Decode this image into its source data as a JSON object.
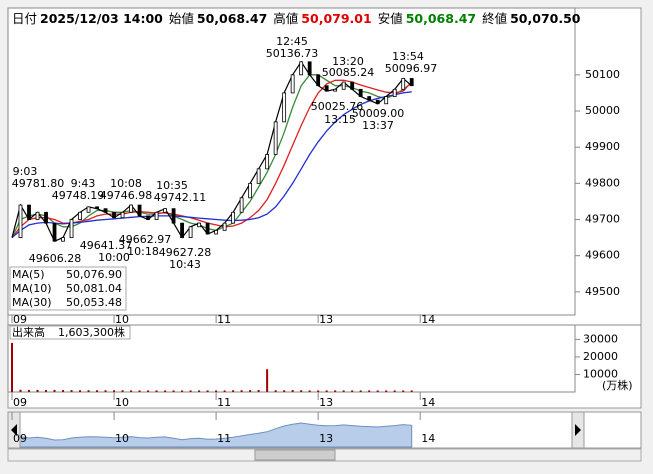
{
  "header": {
    "items": [
      {
        "label": "日付",
        "value": "2025/12/03 14:00",
        "color": "#000000"
      },
      {
        "label": "始値",
        "value": "50,068.47",
        "color": "#000000"
      },
      {
        "label": "高値",
        "value": "50,079.01",
        "color": "#e00000"
      },
      {
        "label": "安値",
        "value": "50,068.47",
        "color": "#008000"
      },
      {
        "label": "終値",
        "value": "50,070.50",
        "color": "#000000"
      }
    ]
  },
  "chart_data": [
    {
      "type": "line",
      "x": [
        0,
        5,
        10,
        15,
        20,
        25,
        30,
        35,
        40,
        45,
        50,
        55,
        60,
        65,
        70,
        75,
        80,
        85,
        90,
        95,
        100,
        105,
        110,
        115,
        120,
        125,
        130,
        135,
        140,
        145,
        150,
        155,
        160,
        165,
        170,
        175,
        180,
        185,
        190,
        195,
        200,
        205,
        210,
        215,
        220,
        225,
        230,
        235
      ],
      "xlim": [
        0,
        331
      ],
      "xticks": [
        {
          "value": 0,
          "label": "09"
        },
        {
          "value": 60,
          "label": "10"
        },
        {
          "value": 120,
          "label": "11"
        },
        {
          "value": 180,
          "label": "13"
        },
        {
          "value": 240,
          "label": "14"
        }
      ],
      "ylim": [
        49436,
        50224
      ],
      "yticks": [
        49500,
        49600,
        49700,
        49800,
        49900,
        50000,
        50100
      ],
      "price": {
        "color": "#000000",
        "values": [
          49650,
          49740,
          49700,
          49720,
          49690,
          49640,
          49650,
          49700,
          49720,
          49735,
          49730,
          49720,
          49705,
          49720,
          49740,
          49710,
          49700,
          49720,
          49730,
          49690,
          49650,
          49680,
          49690,
          49660,
          49670,
          49690,
          49720,
          49760,
          49800,
          49840,
          49880,
          49970,
          50050,
          50100,
          50136,
          50100,
          50070,
          50055,
          50060,
          50080,
          50060,
          50040,
          50030,
          50020,
          50040,
          50060,
          50090,
          50070
        ]
      },
      "series": [
        {
          "name": "MA(5)",
          "value_label": "50,076.90",
          "color": "#3a8a3a",
          "values": [
            49650,
            49700,
            49710,
            49715,
            49710,
            49690,
            49680,
            49680,
            49690,
            49710,
            49725,
            49725,
            49720,
            49720,
            49725,
            49720,
            49715,
            49715,
            49720,
            49710,
            49700,
            49690,
            49685,
            49675,
            49670,
            49680,
            49690,
            49720,
            49750,
            49790,
            49830,
            49880,
            49940,
            50010,
            50070,
            50100,
            50100,
            50085,
            50070,
            50070,
            50065,
            50055,
            50050,
            50040,
            50035,
            50045,
            50060,
            50077
          ]
        },
        {
          "name": "MA(10)",
          "value_label": "50,081.04",
          "color": "#e02020",
          "values": [
            49650,
            49680,
            49700,
            49705,
            49705,
            49700,
            49690,
            49690,
            49695,
            49700,
            49710,
            49715,
            49715,
            49715,
            49720,
            49722,
            49720,
            49718,
            49718,
            49715,
            49710,
            49705,
            49698,
            49690,
            49685,
            49680,
            49682,
            49690,
            49705,
            49725,
            49755,
            49800,
            49850,
            49905,
            49960,
            50010,
            50050,
            50075,
            50085,
            50085,
            50080,
            50072,
            50065,
            50058,
            50052,
            50050,
            50055,
            50081
          ]
        },
        {
          "name": "MA(30)",
          "value_label": "50,053.48",
          "color": "#2030d0",
          "values": [
            49650,
            49670,
            49685,
            49690,
            49692,
            49690,
            49688,
            49690,
            49692,
            49695,
            49698,
            49700,
            49702,
            49704,
            49706,
            49708,
            49709,
            49710,
            49710,
            49710,
            49708,
            49706,
            49704,
            49702,
            49700,
            49698,
            49697,
            49698,
            49700,
            49705,
            49715,
            49735,
            49765,
            49800,
            49840,
            49880,
            49915,
            49945,
            49970,
            49990,
            50005,
            50018,
            50028,
            50035,
            50040,
            50045,
            50050,
            50053
          ]
        }
      ],
      "annotations": [
        {
          "time": "9:03",
          "price": "49781.80"
        },
        {
          "time": "9:43",
          "price": "49748.19"
        },
        {
          "time": "10:08",
          "price": "49746.98"
        },
        {
          "time": "10:35",
          "price": "49742.11"
        },
        {
          "time": "10:00",
          "price": "49641.37"
        },
        {
          "time": "10:18",
          "price": "49662.97"
        },
        {
          "time": "10:43",
          "price": "49627.28"
        },
        {
          "price": "49606.28"
        },
        {
          "time": "12:45",
          "price": "50136.73"
        },
        {
          "time": "13:20",
          "price": "50085.24"
        },
        {
          "time": "13:54",
          "price": "50096.97"
        },
        {
          "time": "13:15",
          "price": "50025.76"
        },
        {
          "time": "13:37",
          "price": "50009.00"
        }
      ]
    },
    {
      "type": "bar",
      "label": "出来高",
      "total": "1,603,300株",
      "unit": "(万株)",
      "color": "#a00000",
      "ylim": [
        0,
        36500
      ],
      "yticks": [
        10000,
        20000,
        30000
      ],
      "values": [
        28000,
        1300,
        1200,
        1200,
        1100,
        1200,
        1100,
        1100,
        1000,
        1000,
        1000,
        1000,
        1000,
        1000,
        900,
        900,
        900,
        900,
        900,
        900,
        900,
        900,
        900,
        900,
        900,
        900,
        1000,
        1000,
        1100,
        1100,
        13000,
        1000,
        1000,
        1100,
        1000,
        900,
        900,
        900,
        900,
        900,
        900,
        900,
        900,
        900,
        900,
        900,
        900,
        900
      ]
    }
  ]
}
